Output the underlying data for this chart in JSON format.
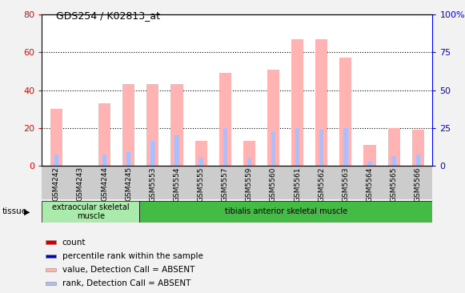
{
  "title": "GDS254 / K02813_at",
  "samples": [
    "GSM4242",
    "GSM4243",
    "GSM4244",
    "GSM4245",
    "GSM5553",
    "GSM5554",
    "GSM5555",
    "GSM5557",
    "GSM5559",
    "GSM5560",
    "GSM5561",
    "GSM5562",
    "GSM5563",
    "GSM5564",
    "GSM5565",
    "GSM5566"
  ],
  "value_absent": [
    30,
    0,
    33,
    43,
    43,
    43,
    13,
    49,
    13,
    51,
    67,
    67,
    57,
    11,
    20,
    19
  ],
  "rank_absent": [
    6,
    0,
    6,
    7,
    13,
    16,
    4,
    20,
    4,
    18,
    20,
    19,
    20,
    2,
    5,
    6
  ],
  "ylim_left": [
    0,
    80
  ],
  "ylim_right": [
    0,
    100
  ],
  "yticks_left": [
    0,
    20,
    40,
    60,
    80
  ],
  "ytick_labels_left": [
    "0",
    "20",
    "40",
    "60",
    "80"
  ],
  "yticks_right_vals": [
    0,
    25,
    50,
    75,
    100
  ],
  "ytick_labels_right": [
    "0",
    "25",
    "50",
    "75",
    "100%"
  ],
  "color_value_absent": "#FFB3B3",
  "color_rank_absent": "#AABFFF",
  "color_count": "#CC0000",
  "color_pct_rank": "#0000CC",
  "tissue_groups": [
    {
      "label": "extraocular skeletal\nmuscle",
      "start": 0,
      "end": 4,
      "color": "#AAEAAA"
    },
    {
      "label": "tibialis anterior skeletal muscle",
      "start": 4,
      "end": 16,
      "color": "#44BB44"
    }
  ],
  "legend_items": [
    {
      "label": "count",
      "color": "#CC0000"
    },
    {
      "label": "percentile rank within the sample",
      "color": "#0000CC"
    },
    {
      "label": "value, Detection Call = ABSENT",
      "color": "#FFB3B3"
    },
    {
      "label": "rank, Detection Call = ABSENT",
      "color": "#AABFFF"
    }
  ],
  "tissue_label": "tissue",
  "fig_bg": "#F2F2F2",
  "plot_bg": "#FFFFFF",
  "grid_lines": [
    20,
    40,
    60
  ]
}
